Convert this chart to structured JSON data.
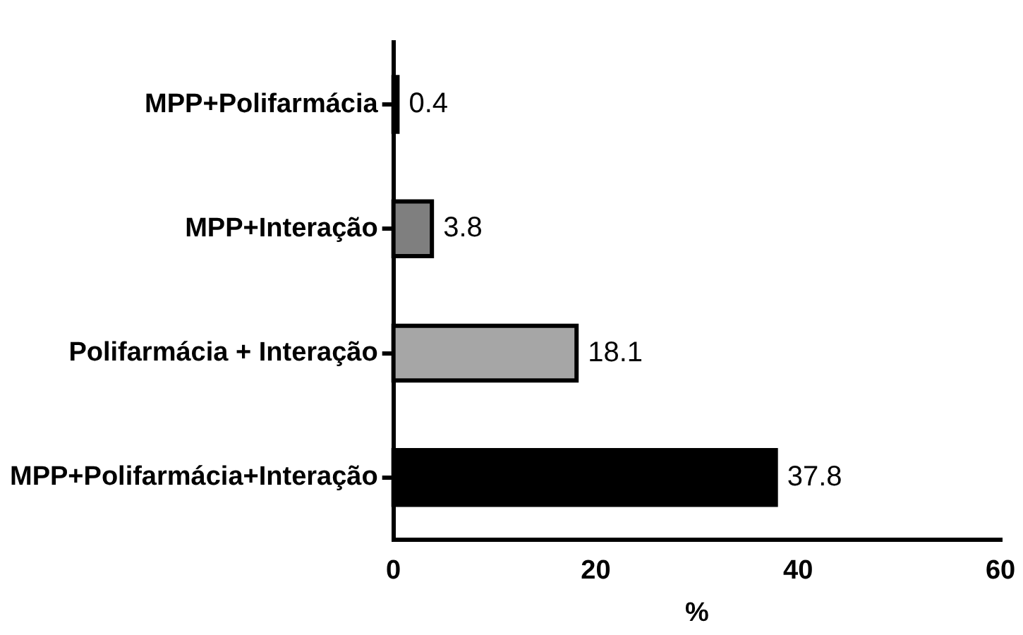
{
  "chart_data": {
    "type": "bar",
    "orientation": "horizontal",
    "xlabel": "%",
    "categories": [
      "MPP+Polifarmácia",
      "MPP+Interação",
      "Polifarmácia + Interação",
      "MPP+Polifarmácia+Interação"
    ],
    "values": [
      0.4,
      3.8,
      18.1,
      37.8
    ],
    "colors": [
      "#000000",
      "#7f7f7f",
      "#a6a6a6",
      "#000000"
    ],
    "xlim": [
      0,
      60
    ],
    "xticks": [
      0,
      20,
      40,
      60
    ],
    "grid": false,
    "legend": false,
    "data_labels": true
  }
}
